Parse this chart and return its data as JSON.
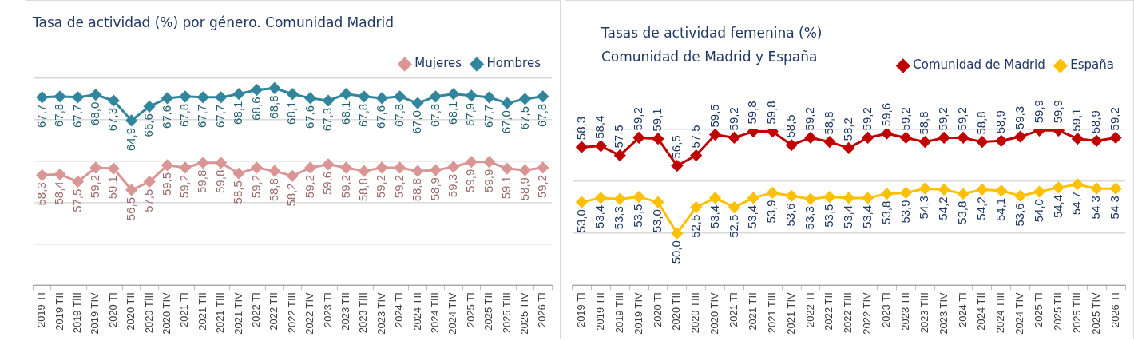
{
  "chart_data": [
    {
      "type": "line",
      "title": "Tasa de actividad (%) por género. Comunidad Madrid",
      "categories": [
        "2019 TI",
        "2019 TII",
        "2019 TIII",
        "2019 TIV",
        "2020 TI",
        "2020 TII",
        "2020 TIII",
        "2020 TIV",
        "2021 TI",
        "2021 TII",
        "2021 TIII",
        "2021 TIV",
        "2022 TI",
        "2022 TII",
        "2022 TIII",
        "2022 TIV",
        "2023 TI",
        "2023 TII",
        "2023 TIII",
        "2023 TIV",
        "2024 TI",
        "2024 TII",
        "2024 TIII",
        "2024 TIV",
        "2025 TI",
        "2025 TII",
        "2025 TIII",
        "2025 TIV",
        "2026 TI"
      ],
      "series": [
        {
          "name": "Mujeres",
          "color": "#d99694",
          "values": [
            58.3,
            58.4,
            57.5,
            59.2,
            59.1,
            56.5,
            57.5,
            59.5,
            59.2,
            59.8,
            59.8,
            58.5,
            59.2,
            58.8,
            58.2,
            59.2,
            59.6,
            59.2,
            58.8,
            59.2,
            59.2,
            58.8,
            58.9,
            59.3,
            59.9,
            59.9,
            59.1,
            58.9,
            59.2
          ],
          "value_labels": [
            "58,3",
            "58,4",
            "57,5",
            "59,2",
            "59,1",
            "56,5",
            "57,5",
            "59,5",
            "59,2",
            "59,8",
            "59,8",
            "58,5",
            "59,2",
            "58,8",
            "58,2",
            "59,2",
            "59,6",
            "59,2",
            "58,8",
            "59,2",
            "59,2",
            "58,8",
            "58,9",
            "59,3",
            "59,9",
            "59,9",
            "59,1",
            "58,9",
            "59,2"
          ]
        },
        {
          "name": "Hombres",
          "color": "#31859c",
          "values": [
            67.7,
            67.8,
            67.7,
            68.0,
            67.3,
            64.9,
            66.6,
            67.6,
            67.8,
            67.7,
            67.7,
            68.1,
            68.6,
            68.8,
            68.1,
            67.6,
            67.3,
            68.1,
            67.8,
            67.6,
            67.8,
            67.0,
            67.8,
            68.1,
            67.9,
            67.7,
            67.0,
            67.5,
            67.8
          ],
          "value_labels": [
            "67,7",
            "67,8",
            "67,7",
            "68,0",
            "67,3",
            "64,9",
            "66,6",
            "67,6",
            "67,8",
            "67,7",
            "67,7",
            "68,1",
            "68,6",
            "68,8",
            "68,1",
            "67,6",
            "67,3",
            "68,1",
            "67,8",
            "67,6",
            "67,8",
            "67,0",
            "67,8",
            "68,1",
            "67,9",
            "67,7",
            "67,0",
            "67,5",
            "67,8"
          ]
        }
      ],
      "ylim": [
        45,
        70
      ],
      "yticks": [
        {
          "value": 45,
          "label": null
        },
        {
          "value": 50,
          "label": null
        },
        {
          "value": 55,
          "label": null
        },
        {
          "value": 60,
          "label": null
        },
        {
          "value": 65,
          "label": null
        },
        {
          "value": 70,
          "label": null
        }
      ],
      "tick_labels": "x",
      "grid": "y",
      "legend": "top right",
      "marker": "diamond",
      "line_style": "solid"
    },
    {
      "type": "line",
      "title": "Tasas de actividad femenina (%)\nComunidad de Madrid y España",
      "categories": [
        "2019 TI",
        "2019 TII",
        "2019 TIII",
        "2019 TIV",
        "2020 TI",
        "2020 TII",
        "2020 TIII",
        "2020 TIV",
        "2021 TI",
        "2021 TII",
        "2021 TIII",
        "2021 TIV",
        "2022 TI",
        "2022 TII",
        "2022 TIII",
        "2022 TIV",
        "2023 TI",
        "2023 TII",
        "2023 TIII",
        "2023 TIV",
        "2024 TI",
        "2024 TII",
        "2024 TIII",
        "2024 TIV",
        "2025 TI",
        "2025 TII",
        "2025 TIII",
        "2025 TIV",
        "2026 TI"
      ],
      "series": [
        {
          "name": "Comunidad de Madrid",
          "color": "#c00000",
          "values": [
            58.3,
            58.4,
            57.5,
            59.2,
            59.1,
            56.5,
            57.5,
            59.5,
            59.2,
            59.8,
            59.8,
            58.5,
            59.2,
            58.8,
            58.2,
            59.2,
            59.6,
            59.2,
            58.8,
            59.2,
            59.2,
            58.8,
            58.9,
            59.3,
            59.9,
            59.9,
            59.1,
            58.9,
            59.2
          ],
          "value_labels": [
            "58,3",
            "58,4",
            "57,5",
            "59,2",
            "59,1",
            "56,5",
            "57,5",
            "59,5",
            "59,2",
            "59,8",
            "59,8",
            "58,5",
            "59,2",
            "58,8",
            "58,2",
            "59,2",
            "59,6",
            "59,2",
            "58,8",
            "59,2",
            "59,2",
            "58,8",
            "58,9",
            "59,3",
            "59,9",
            "59,9",
            "59,1",
            "58,9",
            "59,2"
          ]
        },
        {
          "name": "España",
          "color": "#ffc000",
          "values": [
            53.0,
            53.4,
            53.3,
            53.5,
            53.0,
            50.0,
            52.5,
            53.4,
            52.5,
            53.4,
            53.9,
            53.6,
            53.3,
            53.5,
            53.4,
            53.4,
            53.8,
            53.9,
            54.3,
            54.2,
            53.8,
            54.2,
            54.1,
            53.6,
            54.0,
            54.4,
            54.7,
            54.3,
            54.3
          ],
          "value_labels": [
            "53,0",
            "53,4",
            "53,3",
            "53,5",
            "53,0",
            "50,0",
            "52,5",
            "53,4",
            "52,5",
            "53,4",
            "53,9",
            "53,6",
            "53,3",
            "53,5",
            "53,4",
            "53,4",
            "53,8",
            "53,9",
            "54,3",
            "54,2",
            "53,8",
            "54,2",
            "54,1",
            "53,6",
            "54,0",
            "54,4",
            "54,7",
            "54,3",
            "54,3"
          ]
        }
      ],
      "ylim": [
        45,
        60
      ],
      "yticks": [
        {
          "value": 45,
          "label": null
        },
        {
          "value": 50,
          "label": null
        },
        {
          "value": 55,
          "label": null
        },
        {
          "value": 60,
          "label": null
        }
      ],
      "tick_labels": "x",
      "grid": "y",
      "legend": "top right",
      "marker": "diamond",
      "line_style": "solid"
    }
  ]
}
